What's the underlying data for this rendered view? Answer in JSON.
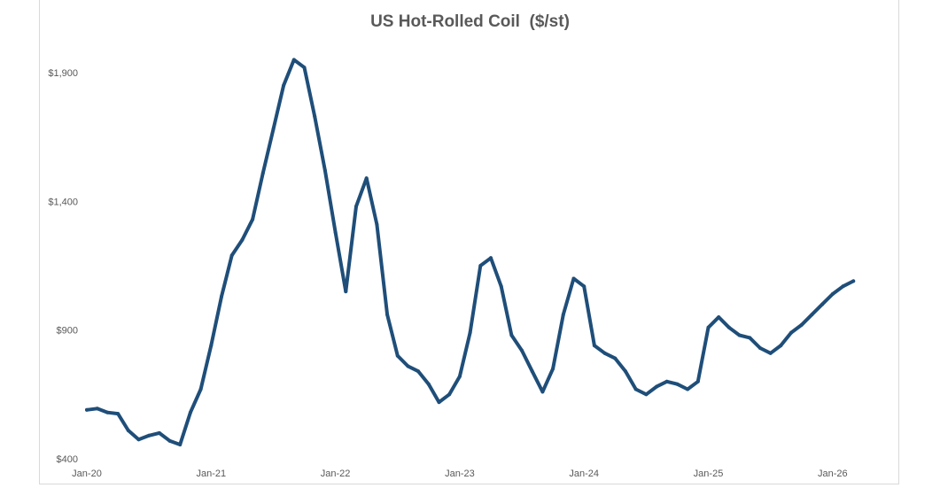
{
  "chart_data": {
    "type": "line",
    "title": "US Hot-Rolled Coil  ($/st)",
    "xlabel": "",
    "ylabel": "",
    "ylim": [
      400,
      1900
    ],
    "y_ticks": [
      400,
      900,
      1400,
      1900
    ],
    "y_tick_labels": [
      "$400",
      "$900",
      "$1,400",
      "$1,900"
    ],
    "x_range": [
      "2020-01",
      "2026-05"
    ],
    "x_ticks": [
      "Jan-20",
      "Jan-21",
      "Jan-22",
      "Jan-23",
      "Jan-24",
      "Jan-25",
      "Jan-26"
    ],
    "grid": false,
    "legend": "none",
    "line_color": "#1f4e79",
    "series": [
      {
        "points": [
          [
            "2020-01",
            590
          ],
          [
            "2020-02",
            595
          ],
          [
            "2020-03",
            580
          ],
          [
            "2020-04",
            575
          ],
          [
            "2020-05",
            510
          ],
          [
            "2020-06",
            475
          ],
          [
            "2020-07",
            490
          ],
          [
            "2020-08",
            500
          ],
          [
            "2020-09",
            470
          ],
          [
            "2020-10",
            455
          ],
          [
            "2020-11",
            580
          ],
          [
            "2020-12",
            670
          ],
          [
            "2021-01",
            840
          ],
          [
            "2021-02",
            1030
          ],
          [
            "2021-03",
            1190
          ],
          [
            "2021-04",
            1250
          ],
          [
            "2021-05",
            1330
          ],
          [
            "2021-06",
            1510
          ],
          [
            "2021-07",
            1680
          ],
          [
            "2021-08",
            1850
          ],
          [
            "2021-09",
            1950
          ],
          [
            "2021-10",
            1920
          ],
          [
            "2021-11",
            1730
          ],
          [
            "2021-12",
            1520
          ],
          [
            "2022-01",
            1280
          ],
          [
            "2022-02",
            1050
          ],
          [
            "2022-03",
            1380
          ],
          [
            "2022-04",
            1490
          ],
          [
            "2022-05",
            1310
          ],
          [
            "2022-06",
            960
          ],
          [
            "2022-07",
            800
          ],
          [
            "2022-08",
            760
          ],
          [
            "2022-09",
            740
          ],
          [
            "2022-10",
            690
          ],
          [
            "2022-11",
            620
          ],
          [
            "2022-12",
            650
          ],
          [
            "2023-01",
            720
          ],
          [
            "2023-02",
            890
          ],
          [
            "2023-03",
            1150
          ],
          [
            "2023-04",
            1180
          ],
          [
            "2023-05",
            1070
          ],
          [
            "2023-06",
            880
          ],
          [
            "2023-07",
            820
          ],
          [
            "2023-08",
            740
          ],
          [
            "2023-09",
            660
          ],
          [
            "2023-10",
            750
          ],
          [
            "2023-11",
            960
          ],
          [
            "2023-12",
            1100
          ],
          [
            "2024-01",
            1070
          ],
          [
            "2024-02",
            840
          ],
          [
            "2024-03",
            810
          ],
          [
            "2024-04",
            790
          ],
          [
            "2024-05",
            740
          ],
          [
            "2024-06",
            670
          ],
          [
            "2024-07",
            650
          ],
          [
            "2024-08",
            680
          ],
          [
            "2024-09",
            700
          ],
          [
            "2024-10",
            690
          ],
          [
            "2024-11",
            670
          ],
          [
            "2024-12",
            700
          ],
          [
            "2025-01",
            910
          ],
          [
            "2025-02",
            950
          ],
          [
            "2025-03",
            910
          ],
          [
            "2025-04",
            880
          ],
          [
            "2025-05",
            870
          ],
          [
            "2025-06",
            830
          ],
          [
            "2025-07",
            810
          ],
          [
            "2025-08",
            840
          ],
          [
            "2025-09",
            890
          ],
          [
            "2025-10",
            920
          ],
          [
            "2025-11",
            960
          ],
          [
            "2025-12",
            1000
          ],
          [
            "2026-01",
            1040
          ],
          [
            "2026-02",
            1070
          ],
          [
            "2026-03",
            1090
          ]
        ]
      }
    ]
  }
}
